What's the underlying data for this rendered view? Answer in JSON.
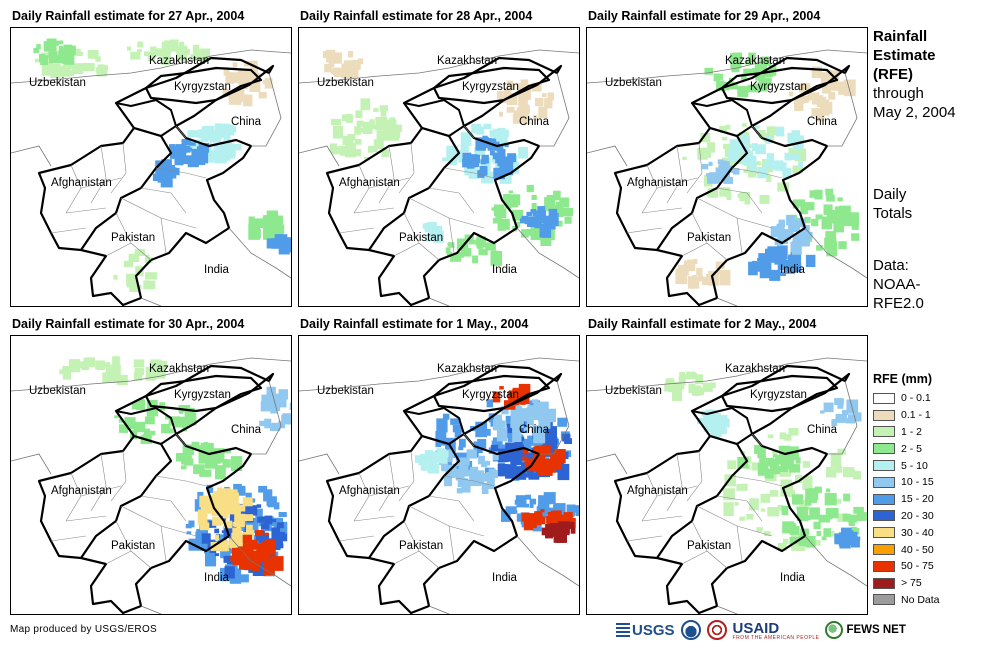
{
  "panels": [
    {
      "title": "Daily Rainfall estimate for 27 Apr., 2004",
      "pattern": "p27"
    },
    {
      "title": "Daily Rainfall estimate for 28 Apr., 2004",
      "pattern": "p28"
    },
    {
      "title": "Daily Rainfall estimate for 29 Apr., 2004",
      "pattern": "p29"
    },
    {
      "title": "Daily Rainfall estimate for 30 Apr., 2004",
      "pattern": "p30"
    },
    {
      "title": "Daily Rainfall estimate for 1 May., 2004",
      "pattern": "p01"
    },
    {
      "title": "Daily Rainfall estimate for 2 May., 2004",
      "pattern": "p02"
    }
  ],
  "map_labels": {
    "kazakhstan": "Kazakhstan",
    "uzbekistan": "Uzbekistan",
    "kyrgyzstan": "Kyrgyzstan",
    "china": "China",
    "afghanistan": "Afghanistan",
    "pakistan": "Pakistan",
    "india": "India"
  },
  "sidebar": {
    "title_line1": "Rainfall",
    "title_line2": "Estimate",
    "title_line3": "(RFE)",
    "title_line4": "through",
    "title_line5": "May 2, 2004",
    "daily_line1": "Daily",
    "daily_line2": "Totals",
    "data_line1": "Data:",
    "data_line2": "NOAA-",
    "data_line3": "RFE2.0"
  },
  "legend": {
    "title": "RFE (mm)",
    "items": [
      {
        "label": "0 - 0.1",
        "color": "#ffffff"
      },
      {
        "label": "0.1 - 1",
        "color": "#ecdcbc"
      },
      {
        "label": "1 - 2",
        "color": "#c4f2b4"
      },
      {
        "label": "2 - 5",
        "color": "#8ee88e"
      },
      {
        "label": "5 - 10",
        "color": "#b4f0f0"
      },
      {
        "label": "10 - 15",
        "color": "#90c8f0"
      },
      {
        "label": "15 - 20",
        "color": "#509ce8"
      },
      {
        "label": "20 - 30",
        "color": "#2c64d4"
      },
      {
        "label": "30 - 40",
        "color": "#f8de84"
      },
      {
        "label": "40 - 50",
        "color": "#f8a000"
      },
      {
        "label": "50 - 75",
        "color": "#e83200"
      },
      {
        "label": "> 75",
        "color": "#a01c1c"
      },
      {
        "label": "No Data",
        "color": "#9c9c9c"
      }
    ]
  },
  "footer": {
    "credit": "Map produced by USGS/EROS",
    "logo_usgs": "USGS",
    "logo_usaid": "USAID",
    "logo_usaid_tagline": "FROM THE AMERICAN PEOPLE",
    "logo_fews": "FEWS NET"
  }
}
